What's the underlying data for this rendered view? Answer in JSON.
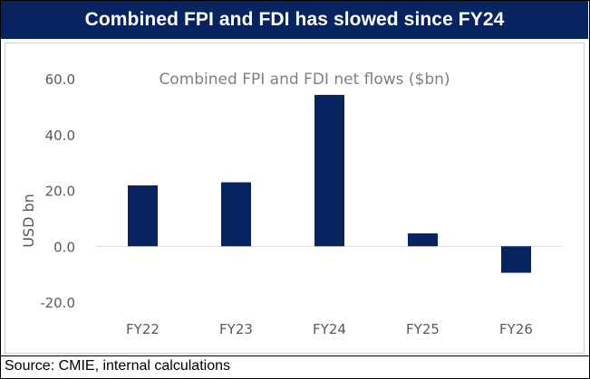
{
  "header": {
    "title": "Combined FPI and FDI has slowed since FY24"
  },
  "source": "Source: CMIE, internal calculations",
  "colors": {
    "banner": "#062460",
    "bar": "#062460",
    "axis_text": "#595959",
    "title_text": "#7f7f7f",
    "baseline": "#d9d9d9"
  },
  "chart_data": {
    "type": "bar",
    "title": "Combined FPI and FDI net flows ($bn)",
    "ylabel": "USD bn",
    "xlabel": "",
    "categories": [
      "FY22",
      "FY23",
      "FY24",
      "FY25",
      "FY26"
    ],
    "values": [
      21.8,
      22.9,
      54.2,
      4.6,
      -9.5
    ],
    "ylim": [
      -20,
      60
    ],
    "yticks": [
      "-20.0",
      "0.0",
      "20.0",
      "40.0",
      "60.0"
    ],
    "grid": false,
    "legend": "none"
  }
}
